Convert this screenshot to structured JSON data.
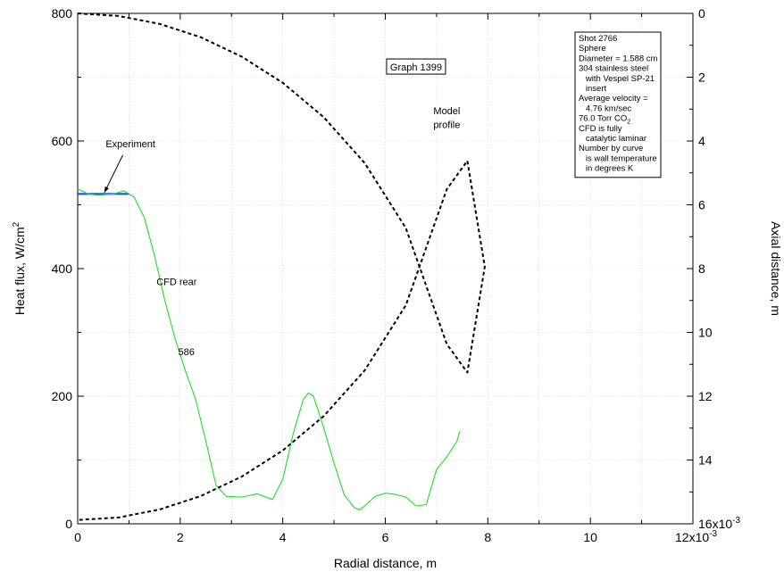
{
  "chart_data": {
    "type": "line",
    "title": "",
    "xlabel": "Radial distance, m",
    "ylabel": "Heat flux, W/cm",
    "ylabel_sup": "2",
    "y2label": "Axial distance, m",
    "xlim": [
      0,
      0.012
    ],
    "ylim": [
      0,
      800
    ],
    "y2lim": [
      0,
      0.016
    ],
    "y2_inverted": true,
    "x_ticks": [
      {
        "value": 0,
        "label": "0"
      },
      {
        "value": 0.002,
        "label": "2"
      },
      {
        "value": 0.004,
        "label": "4"
      },
      {
        "value": 0.006,
        "label": "6"
      },
      {
        "value": 0.008,
        "label": "8"
      },
      {
        "value": 0.01,
        "label": "10"
      }
    ],
    "x_multiplier_label": "12x10",
    "x_multiplier_exp": "-3",
    "y_ticks": [
      {
        "value": 0,
        "label": "0"
      },
      {
        "value": 200,
        "label": "200"
      },
      {
        "value": 400,
        "label": "400"
      },
      {
        "value": 600,
        "label": "600"
      },
      {
        "value": 800,
        "label": "800"
      }
    ],
    "y2_ticks": [
      {
        "value": 0,
        "label": "0"
      },
      {
        "value": 0.002,
        "label": "2"
      },
      {
        "value": 0.004,
        "label": "4"
      },
      {
        "value": 0.006,
        "label": "6"
      },
      {
        "value": 0.008,
        "label": "8"
      },
      {
        "value": 0.01,
        "label": "10"
      },
      {
        "value": 0.012,
        "label": "12"
      },
      {
        "value": 0.014,
        "label": "14"
      }
    ],
    "y2_multiplier_label": "16x10",
    "y2_multiplier_exp": "-3",
    "grid": true,
    "graph_label": "Graph 1399",
    "info_box": [
      "Shot 2766",
      "Sphere",
      "Diameter = 1.588 cm",
      "304 stainless steel",
      "   with Vespel SP-21",
      "   insert",
      "Average velocity =",
      "   4.76 km/sec",
      "76.0 Torr CO",
      "CFD is fully",
      "   catalytic laminar",
      "Number by curve",
      "   is wall temperature",
      "   in degrees K"
    ],
    "info_box_subscript": {
      "line_index": 8,
      "sub": "2"
    },
    "annotations": [
      {
        "text": "Experiment",
        "x": 0.00103,
        "y": 590
      },
      {
        "text": "Model",
        "x": 0.0072,
        "y": 642
      },
      {
        "text": "profile",
        "x": 0.0072,
        "y": 620
      },
      {
        "text": "CFD rear",
        "x": 0.00193,
        "y": 374
      },
      {
        "text": "586",
        "x": 0.00212,
        "y": 264
      }
    ],
    "series": [
      {
        "name": "Experiment",
        "color": "#1a4dff",
        "axis": "left",
        "style": "solid",
        "x": [
          0.0,
          0.001
        ],
        "y": [
          517,
          517
        ]
      },
      {
        "name": "CFD rear",
        "color": "#22dd22",
        "axis": "left",
        "style": "solid",
        "x": [
          0.0,
          0.0002,
          0.0004,
          0.0007,
          0.0009,
          0.0011,
          0.0013,
          0.0015,
          0.0017,
          0.0019,
          0.0021,
          0.0023,
          0.0025,
          0.0027,
          0.0029,
          0.0032,
          0.0035,
          0.0038,
          0.004,
          0.0042,
          0.0044,
          0.0045,
          0.0046,
          0.0048,
          0.005,
          0.0052,
          0.0054,
          0.0055,
          0.0056,
          0.0058,
          0.006,
          0.0062,
          0.0064,
          0.0066,
          0.0068,
          0.007,
          0.0072,
          0.0074,
          0.00745
        ],
        "y": [
          525,
          517,
          515,
          517,
          522,
          512,
          480,
          420,
          350,
          290,
          240,
          195,
          130,
          60,
          43,
          42,
          47,
          38,
          70,
          140,
          195,
          205,
          200,
          150,
          95,
          45,
          25,
          22,
          28,
          43,
          48,
          46,
          42,
          28,
          30,
          85,
          105,
          130,
          145
        ]
      },
      {
        "name": "Model profile",
        "color": "#000000",
        "axis": "right",
        "style": "dashed",
        "x": [
          0.0,
          0.0008,
          0.0016,
          0.0024,
          0.0032,
          0.004,
          0.0048,
          0.0056,
          0.0064,
          0.0072,
          0.0076,
          0.00794,
          0.0076,
          0.0072,
          0.0064,
          0.0056,
          0.0048,
          0.004,
          0.0032,
          0.0024,
          0.0016,
          0.0008,
          0.0
        ],
        "y": [
          0.0,
          8.1e-05,
          0.000329,
          0.000748,
          0.001356,
          0.002176,
          0.003256,
          0.004693,
          0.006731,
          0.010368,
          0.01126,
          0.00794,
          0.00462,
          0.00551,
          0.00915,
          0.01119,
          0.01262,
          0.0137,
          0.01452,
          0.01513,
          0.01555,
          0.0158,
          0.01588
        ]
      }
    ]
  }
}
